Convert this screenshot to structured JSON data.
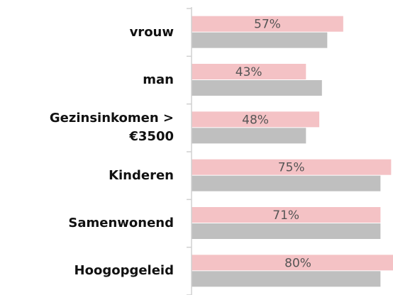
{
  "chart_data": {
    "type": "bar",
    "orientation": "horizontal",
    "categories": [
      "vrouw",
      "man",
      "Gezinsinkomen > €3500",
      "Kinderen",
      "Samenwonend",
      "Hoogopgeleid"
    ],
    "series": [
      {
        "color": "#f4c2c5",
        "values": [
          57,
          43,
          48,
          75,
          71,
          80
        ],
        "value_labels": [
          "57%",
          "43%",
          "48%",
          "75%",
          "71%",
          "80%"
        ]
      },
      {
        "color": "#bfbfbf",
        "values": [
          51,
          49,
          43,
          71,
          71,
          71
        ]
      }
    ],
    "xlim": [
      0,
      75.7
    ]
  }
}
